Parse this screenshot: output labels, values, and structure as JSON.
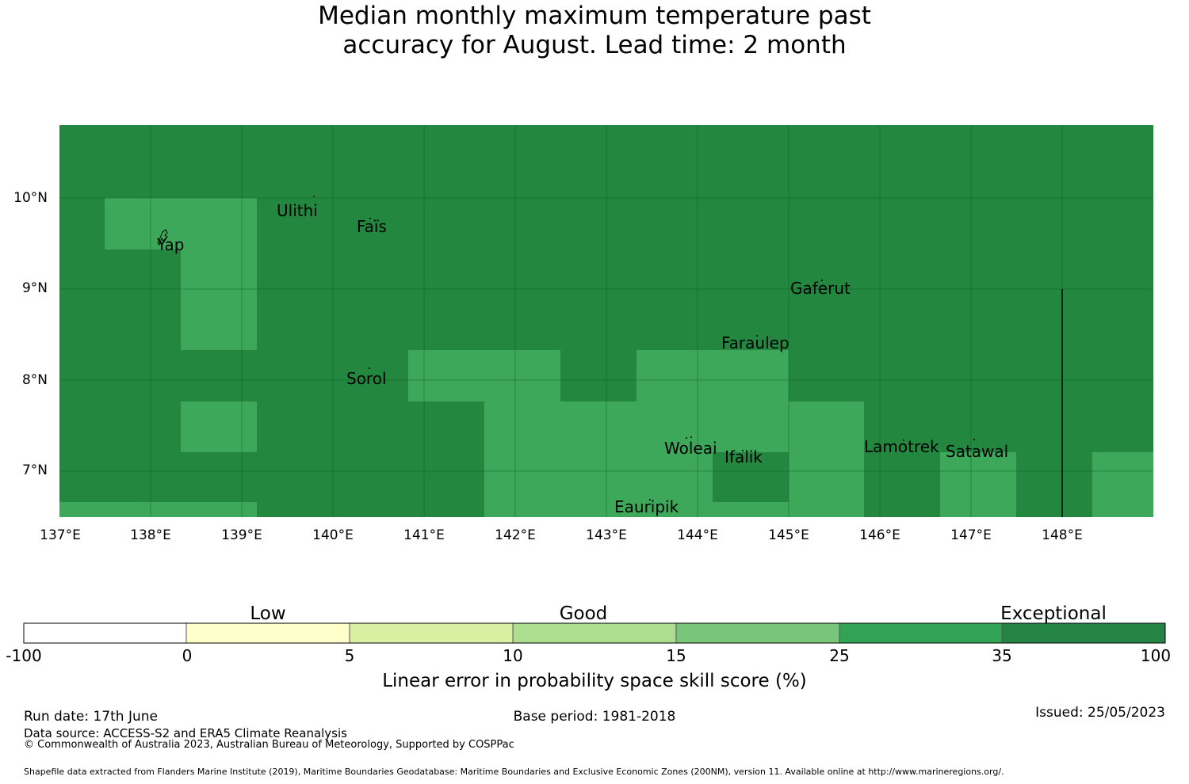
{
  "title_line1": "Median monthly maximum temperature past",
  "title_line2": "accuracy for August. Lead time: 2 month",
  "colors": {
    "exceptional": "#23873f",
    "very_good": "#3da85a",
    "grid": "#0b5a26"
  },
  "map": {
    "lon_ticks": [
      "137°E",
      "138°E",
      "139°E",
      "140°E",
      "141°E",
      "142°E",
      "143°E",
      "144°E",
      "145°E",
      "146°E",
      "147°E",
      "148°E"
    ],
    "lat_ticks": [
      "10°N",
      "9°N",
      "8°N",
      "7°N"
    ],
    "extent": {
      "lon": [
        137,
        149
      ],
      "lat": [
        6.5,
        10.8
      ]
    },
    "skill_pattern": "background skill category 35-100 (Exceptional) with patches of 25-35",
    "places": [
      {
        "name": "Ulithi"
      },
      {
        "name": "Faïs"
      },
      {
        "name": "Yap"
      },
      {
        "name": "Gaferut"
      },
      {
        "name": "Faraulep"
      },
      {
        "name": "Sorol"
      },
      {
        "name": "Woleai"
      },
      {
        "name": "Ifalik"
      },
      {
        "name": "Lamotrek"
      },
      {
        "name": "Satawal"
      },
      {
        "name": "Eauripik"
      }
    ]
  },
  "colorbar": {
    "bins": [
      {
        "from": -100,
        "to": 0,
        "color": "#ffffff"
      },
      {
        "from": 0,
        "to": 5,
        "color": "#ffffcc"
      },
      {
        "from": 5,
        "to": 10,
        "color": "#d9f0a3"
      },
      {
        "from": 10,
        "to": 15,
        "color": "#addd8e"
      },
      {
        "from": 15,
        "to": 25,
        "color": "#78c679"
      },
      {
        "from": 25,
        "to": 35,
        "color": "#31a354"
      },
      {
        "from": 35,
        "to": 100,
        "color": "#238443"
      }
    ],
    "tick_labels": [
      "-100",
      "0",
      "5",
      "10",
      "15",
      "25",
      "35",
      "100"
    ],
    "categories": [
      "Low",
      "Good",
      "Exceptional"
    ],
    "label": "Linear error in probability space skill score (%)"
  },
  "footer": {
    "run_date": "Run date: 17th June",
    "base_period": "Base period: 1981-2018",
    "issued": "Issued: 25/05/2023",
    "data_source": "Data source: ACCESS-S2 and ERA5 Climate Reanalysis",
    "copyright": "© Commonwealth of Australia 2023, Australian Bureau of Meteorology, Supported by COSPPac",
    "shapefile": "Shapefile data extracted from Flanders Marine Institute (2019), Maritime Boundaries Geodatabase: Maritime Boundaries and Exclusive Economic Zones (200NM), version 11. Available online at http://www.marineregions.org/."
  }
}
